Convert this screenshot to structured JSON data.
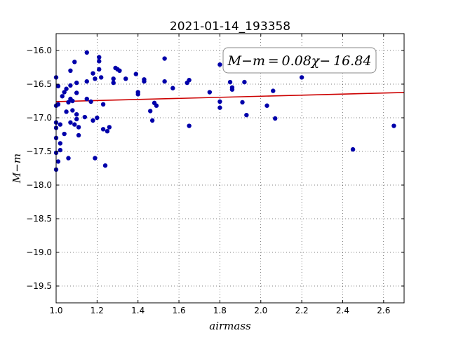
{
  "chart_data": {
    "type": "scatter",
    "title": "2021-01-14_193358",
    "xlabel": "airmass",
    "ylabel": "M−m",
    "xlim": [
      1.0,
      2.7
    ],
    "ylim": [
      -15.75,
      -19.75
    ],
    "y_inverted": true,
    "grid": true,
    "x_ticks": [
      1.0,
      1.2,
      1.4,
      1.6,
      1.8,
      2.0,
      2.2,
      2.4,
      2.6
    ],
    "x_tick_labels": [
      "1.0",
      "1.2",
      "1.4",
      "1.6",
      "1.8",
      "2.0",
      "2.2",
      "2.4",
      "2.6"
    ],
    "y_ticks": [
      -16.0,
      -16.5,
      -17.0,
      -17.5,
      -18.0,
      -18.5,
      -19.0,
      -19.5
    ],
    "y_tick_labels": [
      "−16.0",
      "−16.5",
      "−17.0",
      "−17.5",
      "−18.0",
      "−18.5",
      "−19.0",
      "−19.5"
    ],
    "annotation": "M−m = 0.08χ− 16.84",
    "fit": {
      "slope": 0.08,
      "intercept": -16.84,
      "color": "#cc0000"
    },
    "point_color": "#0000aa",
    "points": [
      [
        1.0,
        -16.4
      ],
      [
        1.0,
        -16.82
      ],
      [
        1.0,
        -17.07
      ],
      [
        1.0,
        -17.15
      ],
      [
        1.0,
        -17.3
      ],
      [
        1.0,
        -17.52
      ],
      [
        1.0,
        -17.77
      ],
      [
        1.01,
        -16.53
      ],
      [
        1.01,
        -16.8
      ],
      [
        1.01,
        -17.65
      ],
      [
        1.02,
        -17.1
      ],
      [
        1.02,
        -17.38
      ],
      [
        1.02,
        -17.48
      ],
      [
        1.03,
        -16.68
      ],
      [
        1.04,
        -16.62
      ],
      [
        1.04,
        -17.24
      ],
      [
        1.05,
        -16.57
      ],
      [
        1.05,
        -16.91
      ],
      [
        1.06,
        -16.77
      ],
      [
        1.06,
        -17.6
      ],
      [
        1.07,
        -16.3
      ],
      [
        1.07,
        -16.52
      ],
      [
        1.07,
        -16.72
      ],
      [
        1.07,
        -17.07
      ],
      [
        1.08,
        -16.75
      ],
      [
        1.08,
        -16.89
      ],
      [
        1.09,
        -17.1
      ],
      [
        1.09,
        -16.17
      ],
      [
        1.1,
        -16.48
      ],
      [
        1.1,
        -16.63
      ],
      [
        1.1,
        -16.95
      ],
      [
        1.1,
        -17.02
      ],
      [
        1.11,
        -17.14
      ],
      [
        1.11,
        -17.26
      ],
      [
        1.14,
        -16.99
      ],
      [
        1.15,
        -16.03
      ],
      [
        1.15,
        -16.46
      ],
      [
        1.15,
        -16.72
      ],
      [
        1.17,
        -16.76
      ],
      [
        1.18,
        -16.34
      ],
      [
        1.18,
        -17.04
      ],
      [
        1.19,
        -16.42
      ],
      [
        1.19,
        -17.6
      ],
      [
        1.2,
        -17.0
      ],
      [
        1.21,
        -16.1
      ],
      [
        1.21,
        -16.16
      ],
      [
        1.21,
        -16.28
      ],
      [
        1.22,
        -16.4
      ],
      [
        1.23,
        -16.8
      ],
      [
        1.23,
        -17.17
      ],
      [
        1.24,
        -17.71
      ],
      [
        1.25,
        -17.2
      ],
      [
        1.26,
        -17.14
      ],
      [
        1.28,
        -16.42
      ],
      [
        1.28,
        -16.48
      ],
      [
        1.29,
        -16.26
      ],
      [
        1.3,
        -16.28
      ],
      [
        1.31,
        -16.3
      ],
      [
        1.34,
        -16.42
      ],
      [
        1.39,
        -16.35
      ],
      [
        1.4,
        -16.62
      ],
      [
        1.4,
        -16.65
      ],
      [
        1.43,
        -16.43
      ],
      [
        1.43,
        -16.46
      ],
      [
        1.46,
        -16.9
      ],
      [
        1.47,
        -17.04
      ],
      [
        1.48,
        -16.78
      ],
      [
        1.49,
        -16.82
      ],
      [
        1.53,
        -16.12
      ],
      [
        1.53,
        -16.46
      ],
      [
        1.57,
        -16.56
      ],
      [
        1.64,
        -16.48
      ],
      [
        1.65,
        -16.44
      ],
      [
        1.65,
        -17.12
      ],
      [
        1.75,
        -16.62
      ],
      [
        1.8,
        -16.21
      ],
      [
        1.8,
        -16.76
      ],
      [
        1.8,
        -16.85
      ],
      [
        1.85,
        -16.47
      ],
      [
        1.86,
        -16.55
      ],
      [
        1.86,
        -16.58
      ],
      [
        1.91,
        -16.77
      ],
      [
        1.92,
        -16.47
      ],
      [
        1.93,
        -16.96
      ],
      [
        2.03,
        -16.82
      ],
      [
        2.06,
        -16.6
      ],
      [
        2.07,
        -17.01
      ],
      [
        2.2,
        -16.4
      ],
      [
        2.45,
        -17.47
      ],
      [
        2.65,
        -17.12
      ]
    ]
  }
}
